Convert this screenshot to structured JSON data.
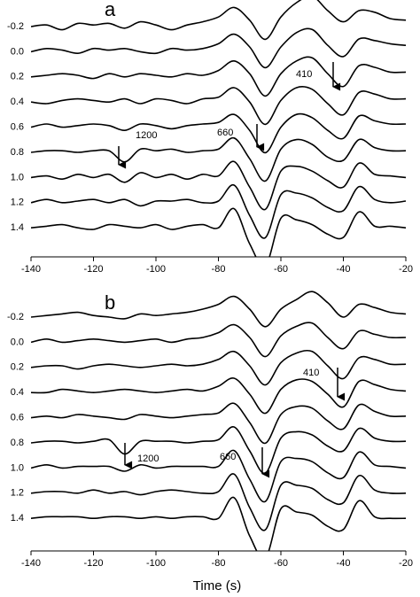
{
  "chart_data": [
    {
      "type": "line",
      "title": "a",
      "color": "#000000",
      "x": [
        -140,
        -135,
        -130,
        -125,
        -120,
        -115,
        -110,
        -105,
        -100,
        -95,
        -90,
        -85,
        -80,
        -75,
        -70,
        -65,
        -60,
        -55,
        -50,
        -45,
        -40,
        -35,
        -30,
        -25,
        -20
      ],
      "xlim": [
        -140,
        -20
      ],
      "xticks": [
        -140,
        -120,
        -100,
        -80,
        -60,
        -40,
        -20
      ],
      "annotations": [
        "1200",
        "660",
        "410"
      ],
      "series": [
        {
          "name": "-0.2",
          "values": [
            0,
            0.1,
            -0.2,
            0.2,
            0.1,
            0.2,
            -0.1,
            0.3,
            0.1,
            -0.2,
            0.1,
            0.3,
            0.6,
            1.2,
            0.4,
            -0.8,
            0.6,
            1.5,
            1.9,
            1.0,
            0.3,
            1.0,
            0.9,
            0.5,
            0.4
          ]
        },
        {
          "name": "0.0",
          "values": [
            0,
            0.2,
            0.1,
            -0.1,
            0.2,
            0.1,
            0.2,
            0,
            -0.1,
            0.2,
            0.1,
            0.2,
            0.5,
            1.1,
            0.3,
            -1.0,
            0.3,
            1.2,
            1.4,
            0.4,
            -0.3,
            0.8,
            0.7,
            0.5,
            0.4
          ]
        },
        {
          "name": "0.2",
          "values": [
            0,
            0.1,
            0.2,
            0.1,
            -0.1,
            0.2,
            0,
            0.2,
            0.1,
            0,
            0.2,
            0.1,
            0.4,
            1.0,
            0.2,
            -1.2,
            0.2,
            1.0,
            1.2,
            0.2,
            -0.6,
            0.7,
            0.6,
            0.3,
            0.3
          ]
        },
        {
          "name": "0.4",
          "values": [
            0,
            -0.1,
            0.1,
            0.2,
            0.1,
            0,
            0.2,
            -0.1,
            0.2,
            0.1,
            -0.1,
            0.2,
            0.3,
            0.9,
            0,
            -1.4,
            0.1,
            0.9,
            0.8,
            -0.1,
            -0.8,
            0.6,
            0.5,
            0.2,
            0.2
          ]
        },
        {
          "name": "0.6",
          "values": [
            0,
            0.2,
            0,
            0.1,
            0.2,
            0.1,
            -0.2,
            0.2,
            0.1,
            -0.1,
            0.1,
            0.2,
            0.3,
            0.8,
            -0.2,
            -1.6,
            0,
            0.8,
            0.6,
            -0.2,
            -0.7,
            0.7,
            0.4,
            0.2,
            0.2
          ]
        },
        {
          "name": "0.8",
          "values": [
            0,
            0.1,
            0.1,
            0,
            0.1,
            0.1,
            -0.6,
            0.2,
            0.1,
            0.2,
            0,
            0.1,
            0.2,
            0.9,
            -0.4,
            -1.8,
            0.2,
            0.8,
            0.5,
            -0.3,
            -0.5,
            0.8,
            0.3,
            0.1,
            0.1
          ]
        },
        {
          "name": "1.0",
          "values": [
            0,
            0.1,
            -0.1,
            0.2,
            0,
            0.2,
            -0.3,
            0.3,
            0,
            0.2,
            -0.1,
            0.2,
            0.1,
            1.0,
            -0.6,
            -2.0,
            0.4,
            0.7,
            0.4,
            -0.2,
            -0.6,
            0.9,
            0.2,
            0.1,
            0
          ]
        },
        {
          "name": "1.2",
          "values": [
            0,
            0.2,
            0,
            0.1,
            0.2,
            0,
            0.2,
            -0.2,
            0.1,
            0.1,
            0.2,
            0,
            0.1,
            1.1,
            -0.8,
            -2.2,
            0.5,
            0.6,
            0.3,
            -0.3,
            -0.5,
            1.0,
            0.2,
            0,
            0.1
          ]
        },
        {
          "name": "1.4",
          "values": [
            0,
            0.1,
            0.2,
            0,
            -0.1,
            0.2,
            0.1,
            0,
            0.2,
            -0.1,
            0.1,
            0.2,
            0,
            1.2,
            -1.0,
            -2.4,
            0.6,
            0.5,
            0.2,
            -0.4,
            -0.6,
            1.0,
            0.1,
            0.1,
            0
          ]
        }
      ]
    },
    {
      "type": "line",
      "title": "b",
      "xlabel": "Time (s)",
      "color": "#000000",
      "x": [
        -140,
        -135,
        -130,
        -125,
        -120,
        -115,
        -110,
        -105,
        -100,
        -95,
        -90,
        -85,
        -80,
        -75,
        -70,
        -65,
        -60,
        -55,
        -50,
        -45,
        -40,
        -35,
        -30,
        -25,
        -20
      ],
      "xlim": [
        -140,
        -20
      ],
      "xticks": [
        -140,
        -120,
        -100,
        -80,
        -60,
        -40,
        -20
      ],
      "annotations": [
        "1200",
        "660",
        "410"
      ],
      "series": [
        {
          "name": "-0.2",
          "values": [
            0,
            0.1,
            0.2,
            0.3,
            0.1,
            0,
            -0.1,
            0.2,
            0.1,
            0.2,
            0.3,
            0.5,
            0.8,
            1.3,
            0.5,
            -0.6,
            0.5,
            1.1,
            1.6,
            0.9,
            0,
            0.8,
            0.6,
            0.3,
            0.2
          ]
        },
        {
          "name": "0.0",
          "values": [
            0,
            0.2,
            0,
            0.1,
            0.2,
            0.1,
            0,
            0.1,
            0.2,
            0,
            0.2,
            0.3,
            0.6,
            1.1,
            0.3,
            -0.9,
            0.4,
            1.0,
            1.2,
            0.3,
            -0.4,
            0.7,
            0.5,
            0.3,
            0.3
          ]
        },
        {
          "name": "0.2",
          "values": [
            0,
            0.1,
            0.1,
            -0.1,
            0.1,
            0.2,
            0.1,
            0,
            0.1,
            0.2,
            0.1,
            0.2,
            0.5,
            1.0,
            0.1,
            -1.1,
            0.3,
            0.9,
            1.0,
            0.1,
            -0.7,
            0.6,
            0.5,
            0.2,
            0.2
          ]
        },
        {
          "name": "0.4",
          "values": [
            0,
            0,
            0.2,
            0.1,
            0,
            0.1,
            0.2,
            0.1,
            0,
            0.1,
            0.2,
            0.1,
            0.4,
            0.9,
            -0.1,
            -1.3,
            0.2,
            0.8,
            0.7,
            -0.1,
            -0.9,
            0.7,
            0.5,
            0.2,
            0.1
          ]
        },
        {
          "name": "0.6",
          "values": [
            0,
            0.1,
            0,
            0.2,
            0.1,
            0,
            -0.1,
            0.2,
            0.1,
            0,
            0.1,
            0.2,
            0.3,
            0.9,
            -0.3,
            -1.6,
            0.2,
            0.7,
            0.6,
            -0.2,
            -0.7,
            0.8,
            0.4,
            0.1,
            0.1
          ]
        },
        {
          "name": "0.8",
          "values": [
            0,
            0.1,
            0.1,
            0,
            0.1,
            0.2,
            -0.7,
            0.1,
            0.1,
            0.1,
            0,
            0.1,
            0.2,
            1.0,
            -0.5,
            -1.9,
            0.3,
            0.7,
            0.5,
            -0.2,
            -0.5,
            0.9,
            0.3,
            0.1,
            0.1
          ]
        },
        {
          "name": "1.0",
          "values": [
            0,
            0.2,
            0,
            0.1,
            0.1,
            0.1,
            -0.2,
            0.2,
            0,
            0.1,
            0.1,
            0.1,
            0.1,
            1.1,
            -0.7,
            -2.1,
            0.4,
            0.6,
            0.4,
            -0.3,
            -0.6,
            1.0,
            0.2,
            0.1,
            0
          ]
        },
        {
          "name": "1.2",
          "values": [
            0,
            0.1,
            0.1,
            0,
            0.2,
            0,
            0.1,
            -0.1,
            0.1,
            0.2,
            0.1,
            0,
            0.1,
            1.2,
            -0.9,
            -2.3,
            0.5,
            0.5,
            0.3,
            -0.4,
            -0.6,
            1.1,
            0.2,
            0,
            0
          ]
        },
        {
          "name": "1.4",
          "values": [
            0,
            0.1,
            0.1,
            0.1,
            0,
            0.1,
            0.1,
            0,
            0.1,
            0,
            0.1,
            0.1,
            0,
            1.3,
            -1.1,
            -2.5,
            0.6,
            0.4,
            0.2,
            -0.5,
            -0.7,
            1.1,
            0.1,
            0,
            0
          ]
        }
      ]
    }
  ]
}
